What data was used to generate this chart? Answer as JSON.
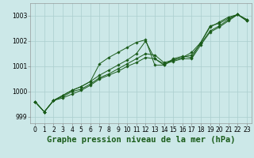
{
  "background_color": "#cce8e8",
  "grid_color": "#aacece",
  "line_color": "#1a5c1a",
  "marker_color": "#1a5c1a",
  "title": "Graphe pression niveau de la mer (hPa)",
  "xlim": [
    -0.5,
    23.5
  ],
  "ylim": [
    998.75,
    1003.5
  ],
  "yticks": [
    999,
    1000,
    1001,
    1002,
    1003
  ],
  "xticks": [
    0,
    1,
    2,
    3,
    4,
    5,
    6,
    7,
    8,
    9,
    10,
    11,
    12,
    13,
    14,
    15,
    16,
    17,
    18,
    19,
    20,
    21,
    22,
    23
  ],
  "series": [
    [
      999.6,
      999.2,
      999.65,
      999.75,
      999.9,
      1000.05,
      1000.25,
      1000.5,
      1000.65,
      1000.8,
      1001.0,
      1001.15,
      1001.35,
      1001.3,
      1001.1,
      1001.2,
      1001.3,
      1001.3,
      1001.85,
      1002.35,
      1002.55,
      1002.8,
      1003.05,
      1002.8
    ],
    [
      999.6,
      999.2,
      999.65,
      999.8,
      1000.0,
      1000.1,
      1000.3,
      1000.55,
      1000.7,
      1000.9,
      1001.1,
      1001.3,
      1001.5,
      1001.45,
      1001.15,
      1001.25,
      1001.35,
      1001.45,
      1001.9,
      1002.4,
      1002.6,
      1002.85,
      1003.05,
      1002.8
    ],
    [
      999.6,
      999.2,
      999.65,
      999.85,
      1000.05,
      1000.2,
      1000.4,
      1000.65,
      1000.85,
      1001.05,
      1001.25,
      1001.5,
      1002.0,
      1001.3,
      1001.05,
      1001.25,
      1001.35,
      1001.55,
      1001.95,
      1002.6,
      1002.7,
      1002.9,
      1003.05,
      1002.85
    ],
    [
      999.6,
      999.2,
      999.65,
      999.85,
      1000.05,
      1000.2,
      1000.4,
      1001.1,
      1001.35,
      1001.55,
      1001.75,
      1001.95,
      1002.05,
      1001.05,
      1001.05,
      1001.3,
      1001.4,
      1001.35,
      1001.95,
      1002.55,
      1002.75,
      1002.95,
      1003.05,
      1002.85
    ]
  ],
  "title_fontsize": 7.5,
  "tick_fontsize": 5.5
}
